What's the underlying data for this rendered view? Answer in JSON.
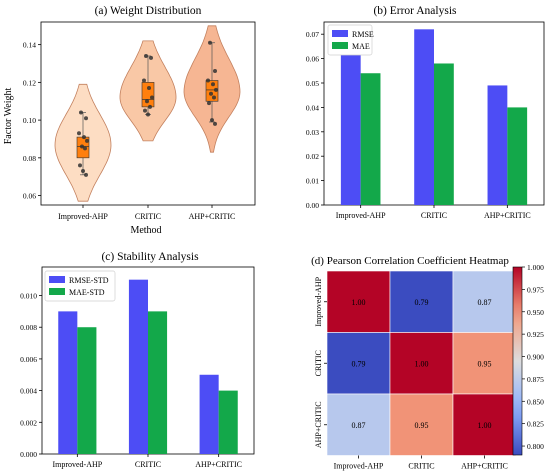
{
  "chart_data": [
    {
      "type": "violin",
      "title": "(a) Weight Distribution",
      "xlabel": "Method",
      "ylabel": "Factor Weight",
      "categories": [
        "Improved-AHP",
        "CRITIC",
        "AHP+CRITIC"
      ],
      "ylim": [
        0.055,
        0.152
      ],
      "yticks": [
        0.06,
        0.08,
        0.1,
        0.12,
        0.14
      ],
      "ytick_labels": [
        "0.06",
        "0.08",
        "0.10",
        "0.12",
        "0.14"
      ],
      "colors": {
        "fill": [
          "#fddcc0",
          "#f9c6a2",
          "#f6b38e"
        ],
        "edge": "#c07a56",
        "box": "#ff7f0e"
      },
      "violins": [
        {
          "center": 0.087,
          "spread": 0.016,
          "kde_range": [
            0.057,
            0.119
          ],
          "shape": "even"
        },
        {
          "center": 0.112,
          "spread": 0.013,
          "kde_range": [
            0.089,
            0.142
          ],
          "shape": "top-heavy"
        },
        {
          "center": 0.115,
          "spread": 0.014,
          "kde_range": [
            0.083,
            0.15
          ],
          "shape": "top-heavy"
        }
      ],
      "boxes": [
        {
          "q1": 0.08,
          "median": 0.086,
          "q3": 0.091,
          "whisker_low": 0.071,
          "whisker_high": 0.104
        },
        {
          "q1": 0.107,
          "median": 0.111,
          "q3": 0.12,
          "whisker_low": 0.103,
          "whisker_high": 0.134
        },
        {
          "q1": 0.11,
          "median": 0.116,
          "q3": 0.121,
          "whisker_low": 0.099,
          "whisker_high": 0.141
        }
      ],
      "points": [
        [
          0.104,
          0.101,
          0.093,
          0.091,
          0.089,
          0.086,
          0.085,
          0.076,
          0.073,
          0.071
        ],
        [
          0.134,
          0.133,
          0.121,
          0.117,
          0.112,
          0.11,
          0.107,
          0.105,
          0.103
        ],
        [
          0.141,
          0.126,
          0.121,
          0.119,
          0.116,
          0.114,
          0.112,
          0.109,
          0.1,
          0.098
        ]
      ]
    },
    {
      "type": "bar",
      "title": "(b) Error Analysis",
      "categories": [
        "Improved-AHP",
        "CRITIC",
        "AHP+CRITIC"
      ],
      "ylim": [
        0,
        0.075
      ],
      "yticks": [
        0,
        0.01,
        0.02,
        0.03,
        0.04,
        0.05,
        0.06,
        0.07
      ],
      "ytick_labels": [
        "0.00",
        "0.01",
        "0.02",
        "0.03",
        "0.04",
        "0.05",
        "0.06",
        "0.07"
      ],
      "series": [
        {
          "name": "RMSE",
          "values": [
            0.064,
            0.072,
            0.049
          ],
          "color": "#4d4df5"
        },
        {
          "name": "MAE",
          "values": [
            0.054,
            0.058,
            0.04
          ],
          "color": "#13a84a"
        }
      ],
      "legend": "top-left"
    },
    {
      "type": "bar",
      "title": "(c) Stability Analysis",
      "categories": [
        "Improved-AHP",
        "CRITIC",
        "AHP+CRITIC"
      ],
      "ylim": [
        0,
        0.0118
      ],
      "yticks": [
        0,
        0.002,
        0.004,
        0.006,
        0.008,
        0.01
      ],
      "ytick_labels": [
        "0.000",
        "0.002",
        "0.004",
        "0.006",
        "0.008",
        "0.010"
      ],
      "series": [
        {
          "name": "RMSE-STD",
          "values": [
            0.009,
            0.011,
            0.005
          ],
          "color": "#4d4df5"
        },
        {
          "name": "MAE-STD",
          "values": [
            0.008,
            0.009,
            0.004
          ],
          "color": "#13a84a"
        }
      ],
      "legend": "top-left"
    },
    {
      "type": "heatmap",
      "title": "(d) Pearson Correlation Coefficient Heatmap",
      "rows": [
        "Improved-AHP",
        "CRITIC",
        "AHP+CRITIC"
      ],
      "cols": [
        "Improved-AHP",
        "CRITIC",
        "AHP+CRITIC"
      ],
      "values": [
        [
          1.0,
          0.79,
          0.87
        ],
        [
          0.79,
          1.0,
          0.95
        ],
        [
          0.87,
          0.95,
          1.0
        ]
      ],
      "labels": [
        [
          "1.00",
          "0.79",
          "0.87"
        ],
        [
          "0.79",
          "1.00",
          "0.95"
        ],
        [
          "0.87",
          "0.95",
          "1.00"
        ]
      ],
      "colorbar": {
        "range": [
          0.79,
          1.0
        ],
        "ticks": [
          1.0,
          0.975,
          0.95,
          0.925,
          0.9,
          0.875,
          0.85,
          0.825,
          0.8
        ],
        "tick_labels": [
          "1.000",
          "0.975",
          "0.950",
          "0.925",
          "0.900",
          "0.875",
          "0.850",
          "0.825",
          "0.800"
        ]
      },
      "colormap": "coolwarm"
    }
  ]
}
